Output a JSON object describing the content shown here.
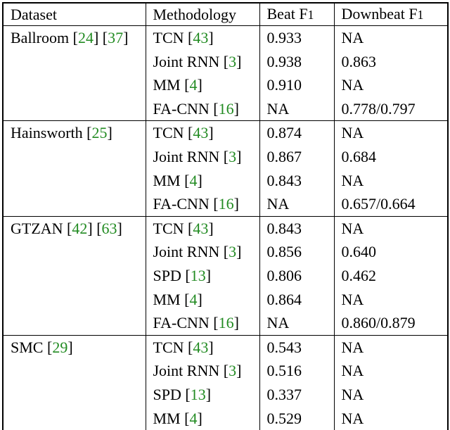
{
  "punct": {
    "open": "[",
    "close": "]"
  },
  "colors": {
    "citation": "#228B22",
    "text": "#000000",
    "border": "#000000",
    "background": "#ffffff"
  },
  "table": {
    "headers": {
      "dataset": "Dataset",
      "methodology": "Methodology",
      "beat": {
        "text": "Beat F",
        "num": "1"
      },
      "downbeat": {
        "text": "Downbeat F",
        "num": "1"
      }
    },
    "groups": [
      {
        "dataset": "Ballroom",
        "refs": [
          "24",
          "37"
        ],
        "rows": [
          {
            "method": "TCN",
            "ref": "43",
            "beat": "0.933",
            "downbeat": "NA"
          },
          {
            "method": "Joint RNN",
            "ref": "3",
            "beat": "0.938",
            "downbeat": "0.863"
          },
          {
            "method": "MM",
            "ref": "4",
            "beat": "0.910",
            "downbeat": "NA"
          },
          {
            "method": "FA-CNN",
            "ref": "16",
            "beat": "NA",
            "downbeat": "0.778/0.797"
          }
        ]
      },
      {
        "dataset": "Hainsworth",
        "refs": [
          "25"
        ],
        "rows": [
          {
            "method": "TCN",
            "ref": "43",
            "beat": "0.874",
            "downbeat": "NA"
          },
          {
            "method": "Joint RNN",
            "ref": "3",
            "beat": "0.867",
            "downbeat": "0.684"
          },
          {
            "method": "MM",
            "ref": "4",
            "beat": "0.843",
            "downbeat": "NA"
          },
          {
            "method": "FA-CNN",
            "ref": "16",
            "beat": "NA",
            "downbeat": "0.657/0.664"
          }
        ]
      },
      {
        "dataset": "GTZAN",
        "refs": [
          "42",
          "63"
        ],
        "rows": [
          {
            "method": "TCN",
            "ref": "43",
            "beat": "0.843",
            "downbeat": "NA"
          },
          {
            "method": "Joint RNN",
            "ref": "3",
            "beat": "0.856",
            "downbeat": "0.640"
          },
          {
            "method": "SPD",
            "ref": "13",
            "beat": "0.806",
            "downbeat": "0.462"
          },
          {
            "method": "MM",
            "ref": "4",
            "beat": "0.864",
            "downbeat": "NA"
          },
          {
            "method": "FA-CNN",
            "ref": "16",
            "beat": "NA",
            "downbeat": "0.860/0.879"
          }
        ]
      },
      {
        "dataset": "SMC",
        "refs": [
          "29"
        ],
        "rows": [
          {
            "method": "TCN",
            "ref": "43",
            "beat": "0.543",
            "downbeat": "NA"
          },
          {
            "method": "Joint RNN",
            "ref": "3",
            "beat": "0.516",
            "downbeat": "NA"
          },
          {
            "method": "SPD",
            "ref": "13",
            "beat": "0.337",
            "downbeat": "NA"
          },
          {
            "method": "MM",
            "ref": "4",
            "beat": "0.529",
            "downbeat": "NA"
          }
        ]
      }
    ]
  }
}
